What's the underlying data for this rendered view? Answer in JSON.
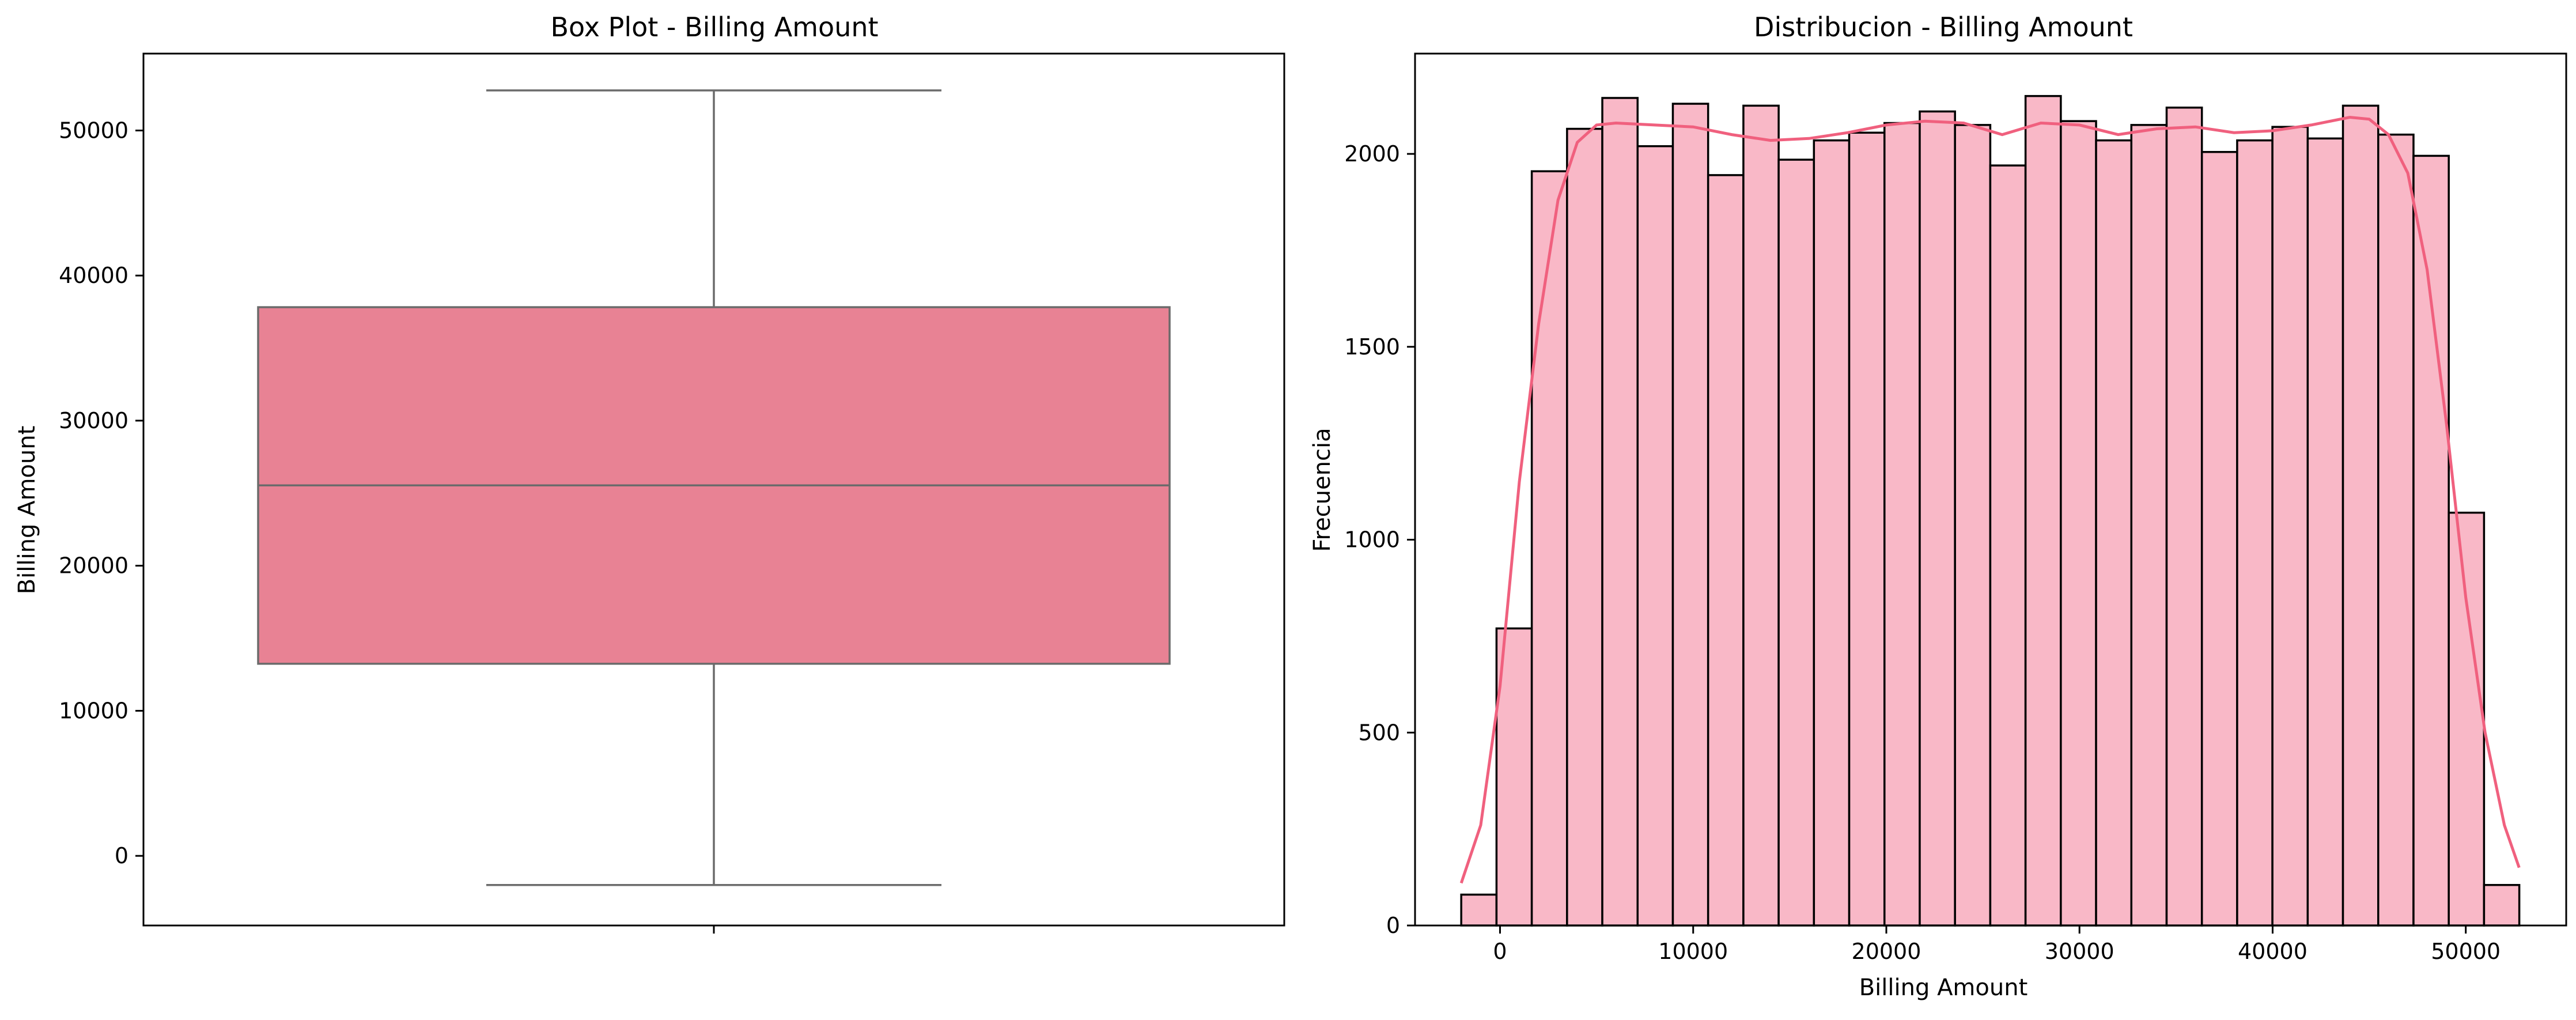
{
  "colors": {
    "box_fill": "#e88294",
    "box_edge": "#6b6b6b",
    "hist_fill": "#f9b8c7",
    "hist_edge": "#000000",
    "kde_line": "#f0607e",
    "spine": "#000000"
  },
  "chart_data": [
    {
      "type": "box",
      "title": "Box Plot - Billing Amount",
      "xlabel": "",
      "ylabel": "Billing Amount",
      "ylim": [
        -4800,
        55300
      ],
      "yticks": [
        0,
        10000,
        20000,
        30000,
        40000,
        50000
      ],
      "ytick_labels": [
        "0",
        "10000",
        "20000",
        "30000",
        "40000",
        "50000"
      ],
      "box": {
        "whisker_low": -2008,
        "q1": 13241,
        "median": 25538,
        "q3": 37820,
        "whisker_high": 52764
      },
      "grid": false
    },
    {
      "type": "bar",
      "subtype": "histogram",
      "title": "Distribucion - Billing Amount",
      "xlabel": "Billing Amount",
      "ylabel": "Frecuencia",
      "xlim": [
        -4400,
        55200
      ],
      "ylim": [
        0,
        2260
      ],
      "xticks": [
        0,
        10000,
        20000,
        30000,
        40000,
        50000
      ],
      "xtick_labels": [
        "0",
        "10000",
        "20000",
        "30000",
        "40000",
        "50000"
      ],
      "yticks": [
        0,
        500,
        1000,
        1500,
        2000
      ],
      "ytick_labels": [
        "0",
        "500",
        "1000",
        "1500",
        "2000"
      ],
      "bin_start": -2008,
      "bin_width": 1826,
      "counts": [
        80,
        770,
        1955,
        2065,
        2145,
        2020,
        2130,
        1945,
        2125,
        1985,
        2035,
        2055,
        2080,
        2110,
        2075,
        1970,
        2150,
        2085,
        2035,
        2075,
        2120,
        2005,
        2035,
        2070,
        2040,
        2125,
        2050,
        1995,
        1070,
        105
      ],
      "kde": {
        "x": [
          -2008,
          -1000,
          0,
          1000,
          2000,
          3000,
          4000,
          5000,
          6000,
          8000,
          10000,
          12000,
          14000,
          16000,
          18000,
          20000,
          22000,
          24000,
          26000,
          28000,
          30000,
          32000,
          34000,
          36000,
          38000,
          40000,
          42000,
          44000,
          45000,
          46000,
          47000,
          48000,
          49000,
          50000,
          51000,
          52000,
          52764
        ],
        "y": [
          110,
          260,
          620,
          1150,
          1560,
          1880,
          2030,
          2075,
          2080,
          2075,
          2070,
          2050,
          2035,
          2040,
          2055,
          2075,
          2085,
          2080,
          2050,
          2080,
          2075,
          2050,
          2065,
          2070,
          2055,
          2060,
          2075,
          2095,
          2090,
          2050,
          1950,
          1700,
          1300,
          850,
          500,
          260,
          150
        ]
      },
      "grid": false
    }
  ]
}
